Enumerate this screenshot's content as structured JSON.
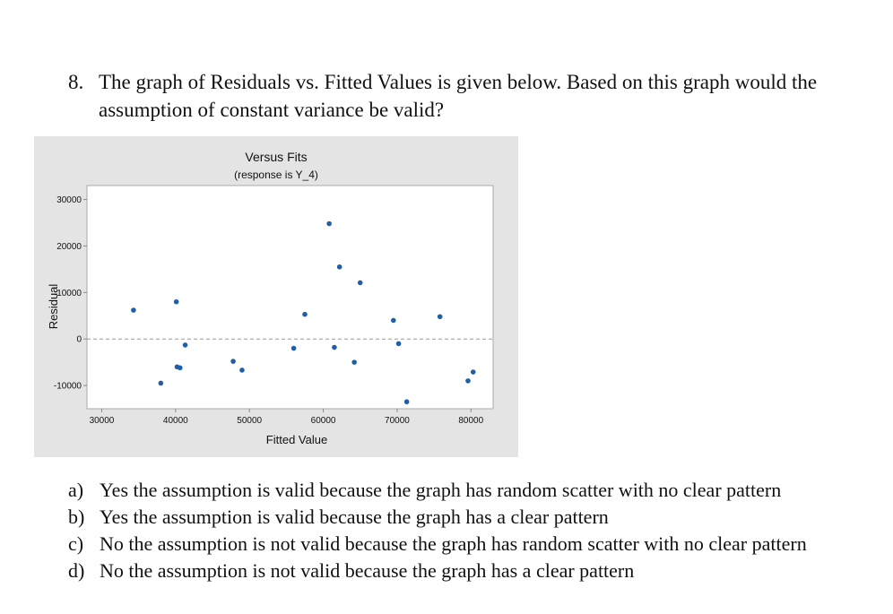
{
  "question": {
    "number": "8.",
    "text": "The graph of Residuals vs. Fitted Values is given below. Based on this graph would the assumption of constant variance be valid?"
  },
  "chart_data": {
    "type": "scatter",
    "title": "Versus Fits",
    "subtitle": "(response is Y_4)",
    "xlabel": "Fitted Value",
    "ylabel": "Residual",
    "xlim": [
      28000,
      83000
    ],
    "ylim": [
      -15000,
      33000
    ],
    "xticks": [
      30000,
      40000,
      50000,
      60000,
      70000,
      80000
    ],
    "yticks": [
      30000,
      20000,
      10000,
      0,
      -10000
    ],
    "xtick_labels": [
      "30000",
      "40000",
      "50000",
      "60000",
      "70000",
      "80000"
    ],
    "ytick_labels": [
      "30000",
      "20000",
      "10000",
      "0",
      "-10000"
    ],
    "reference_line": 0,
    "grid": false,
    "point_color": "#1f5fa8",
    "points": [
      {
        "x": 34300,
        "y": 6200
      },
      {
        "x": 38000,
        "y": -9500
      },
      {
        "x": 40100,
        "y": 8000
      },
      {
        "x": 40200,
        "y": -6000
      },
      {
        "x": 40600,
        "y": -6200
      },
      {
        "x": 41300,
        "y": -1300
      },
      {
        "x": 47800,
        "y": -4800
      },
      {
        "x": 49000,
        "y": -6700
      },
      {
        "x": 56000,
        "y": -2000
      },
      {
        "x": 57500,
        "y": 5300
      },
      {
        "x": 60800,
        "y": 24800
      },
      {
        "x": 61500,
        "y": -1800
      },
      {
        "x": 62200,
        "y": 15500
      },
      {
        "x": 64200,
        "y": -5000
      },
      {
        "x": 65000,
        "y": 12100
      },
      {
        "x": 69500,
        "y": 4000
      },
      {
        "x": 70200,
        "y": -1000
      },
      {
        "x": 71300,
        "y": -13500
      },
      {
        "x": 75800,
        "y": 4800
      },
      {
        "x": 79600,
        "y": -9000
      },
      {
        "x": 80300,
        "y": -7100
      }
    ]
  },
  "answers": [
    {
      "letter": "a)",
      "text": "Yes the assumption is valid because the graph has random scatter with no clear pattern"
    },
    {
      "letter": "b)",
      "text": "Yes the assumption is valid because the graph has a clear pattern"
    },
    {
      "letter": "c)",
      "text": "No the assumption is not valid because the graph has random scatter with no clear pattern"
    },
    {
      "letter": "d)",
      "text": "No the assumption is not valid because the graph has a clear pattern"
    }
  ]
}
